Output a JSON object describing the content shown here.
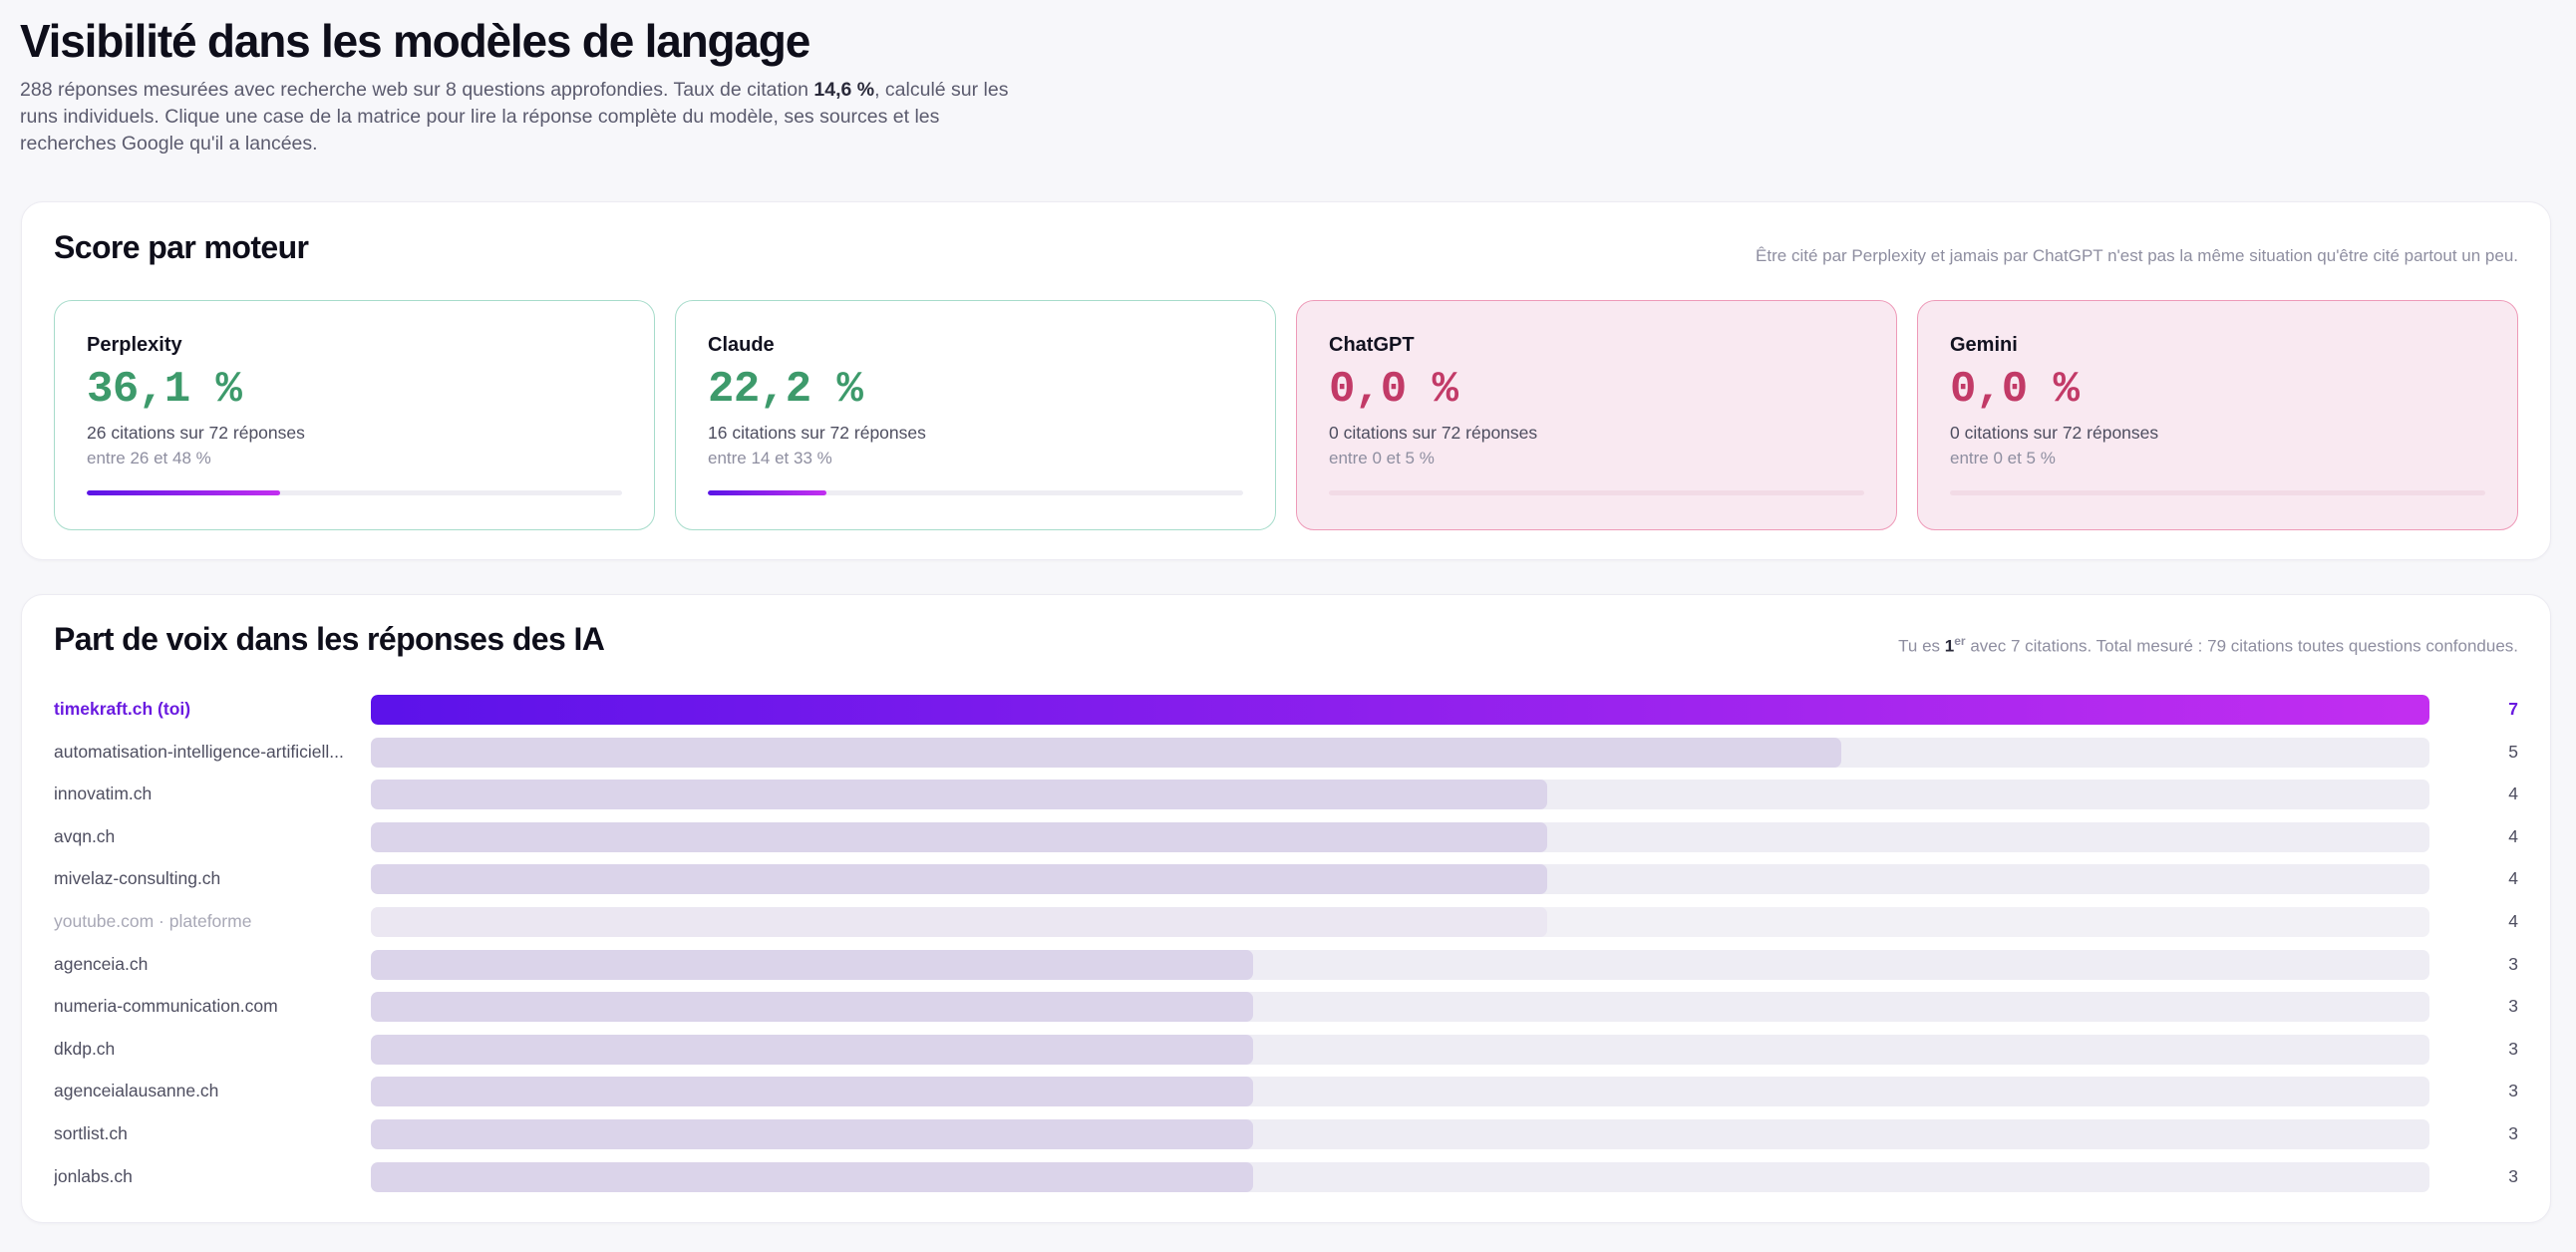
{
  "header": {
    "title": "Visibilité dans les modèles de langage",
    "intro_before": "288 réponses mesurées avec recherche web sur 8 questions approfondies. Taux de citation ",
    "intro_rate": "14,6 %",
    "intro_after": ", calculé sur les runs individuels. Clique une case de la matrice pour lire la réponse complète du modèle, ses sources et les recherches Google qu'il a lancées."
  },
  "engines_section": {
    "title": "Score par moteur",
    "note": "Être cité par Perplexity et jamais par ChatGPT n'est pas la même situation qu'être cité partout un peu.",
    "engines": [
      {
        "name": "Perplexity",
        "score": "36,1 %",
        "citations": "26 citations sur 72 réponses",
        "range": "entre 26 et 48 %",
        "rate": 0.361,
        "status": "positive"
      },
      {
        "name": "Claude",
        "score": "22,2 %",
        "citations": "16 citations sur 72 réponses",
        "range": "entre 14 et 33 %",
        "rate": 0.222,
        "status": "positive"
      },
      {
        "name": "ChatGPT",
        "score": "0,0 %",
        "citations": "0 citations sur 72 réponses",
        "range": "entre 0 et 5 %",
        "rate": 0,
        "status": "negative"
      },
      {
        "name": "Gemini",
        "score": "0,0 %",
        "citations": "0 citations sur 72 réponses",
        "range": "entre 0 et 5 %",
        "rate": 0,
        "status": "negative"
      }
    ]
  },
  "share_section": {
    "title": "Part de voix dans les réponses des IA",
    "note_prefix": "Tu es ",
    "rank_number": "1",
    "rank_suffix": "er",
    "note_suffix": " avec 7 citations. Total mesuré : 79 citations toutes questions confondues.",
    "max_value": 7,
    "rows": [
      {
        "label": "timekraft.ch (toi)",
        "value": 7,
        "kind": "me"
      },
      {
        "label": "automatisation-intelligence-artificiell...",
        "value": 5,
        "kind": "normal"
      },
      {
        "label": "innovatim.ch",
        "value": 4,
        "kind": "normal"
      },
      {
        "label": "avqn.ch",
        "value": 4,
        "kind": "normal"
      },
      {
        "label": "mivelaz-consulting.ch",
        "value": 4,
        "kind": "normal"
      },
      {
        "label": "youtube.com · plateforme",
        "value": 4,
        "kind": "muted"
      },
      {
        "label": "agenceia.ch",
        "value": 3,
        "kind": "normal"
      },
      {
        "label": "numeria-communication.com",
        "value": 3,
        "kind": "normal"
      },
      {
        "label": "dkdp.ch",
        "value": 3,
        "kind": "normal"
      },
      {
        "label": "agenceialausanne.ch",
        "value": 3,
        "kind": "normal"
      },
      {
        "label": "sortlist.ch",
        "value": 3,
        "kind": "normal"
      },
      {
        "label": "jonlabs.ch",
        "value": 3,
        "kind": "normal"
      }
    ]
  }
}
